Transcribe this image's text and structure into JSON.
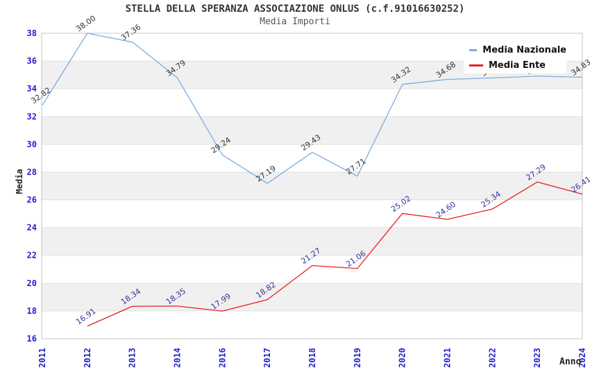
{
  "header": {
    "title": "STELLA DELLA SPERANZA ASSOCIAZIONE ONLUS (c.f.91016630252)",
    "subtitle": "Media Importi"
  },
  "colors": {
    "axis_tick_blue": "#2222cc",
    "national_line": "#7aade0",
    "entity_line": "#e62020",
    "national_value_labels": "#333333",
    "entity_value_labels": "#333399",
    "band_gray": "#f0f0f0",
    "gridline": "#e2e2e2",
    "plot_border": "#c4c4c4",
    "legend_background": "#ffffff"
  },
  "chart_data": {
    "type": "line",
    "title": "STELLA DELLA SPERANZA ASSOCIAZIONE ONLUS (c.f.91016630252)",
    "subtitle": "Media Importi",
    "xlabel": "Anno",
    "ylabel": "Media",
    "ylim": [
      16,
      38
    ],
    "ytick_step": 2,
    "grid": "alternating-horizontal-bands",
    "legend_position": "top-right-inside",
    "categories": [
      "2011",
      "2012",
      "2013",
      "2014",
      "2016",
      "2017",
      "2018",
      "2019",
      "2020",
      "2021",
      "2022",
      "2023",
      "2024"
    ],
    "series": [
      {
        "name": "Media Nazionale",
        "color": "#7aade0",
        "label_color": "#333333",
        "values": [
          32.82,
          38.0,
          37.36,
          34.79,
          29.24,
          27.19,
          29.43,
          27.71,
          34.32,
          34.68,
          34.78,
          34.91,
          34.83
        ],
        "visible_point_labels": [
          "32.82",
          "38.00",
          "37.36",
          "34.79",
          "29.24",
          "27.19",
          "29.43",
          "27.71",
          "34.32",
          "34.68",
          "34.83"
        ],
        "labels_occluded_by_legend": [
          "2022",
          "2023"
        ]
      },
      {
        "name": "Media Ente",
        "color": "#e62020",
        "label_color": "#333399",
        "values": [
          null,
          16.91,
          18.34,
          18.35,
          17.99,
          18.82,
          21.27,
          21.06,
          25.02,
          24.6,
          25.34,
          27.29,
          26.41
        ],
        "visible_point_labels": [
          "16.91",
          "18.34",
          "18.35",
          "17.99",
          "18.82",
          "21.27",
          "21.06",
          "25.02",
          "24.60",
          "25.34",
          "27.29",
          "26.41"
        ]
      }
    ]
  }
}
